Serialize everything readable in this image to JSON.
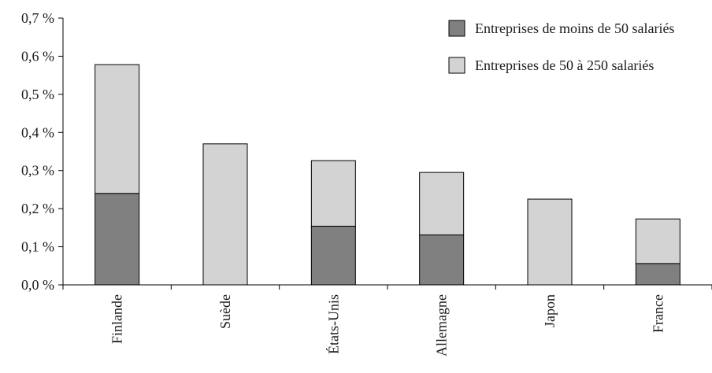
{
  "chart_data": {
    "type": "bar",
    "stacked": true,
    "title": "",
    "xlabel": "",
    "ylabel": "",
    "categories": [
      "Finlande",
      "Suède",
      "États-Unis",
      "Allemagne",
      "Japon",
      "France"
    ],
    "series": [
      {
        "name": "Entreprises de moins de 50 salariés",
        "color": "#808080",
        "values": [
          0.24,
          null,
          0.154,
          0.131,
          null,
          0.056
        ]
      },
      {
        "name": "Entreprises de 50 à 250 salariés",
        "color": "#d3d3d3",
        "values": [
          0.338,
          0.37,
          0.172,
          0.164,
          0.225,
          0.117
        ]
      }
    ],
    "ylim": [
      0,
      0.7
    ],
    "yticks": [
      0,
      0.1,
      0.2,
      0.3,
      0.4,
      0.5,
      0.6,
      0.7
    ],
    "ytick_labels": [
      "0,0 %",
      "0,1 %",
      "0,2 %",
      "0,3 %",
      "0,4 %",
      "0,5 %",
      "0,6 %",
      "0,7 %"
    ],
    "grid": false,
    "legend_position": "top-right"
  }
}
